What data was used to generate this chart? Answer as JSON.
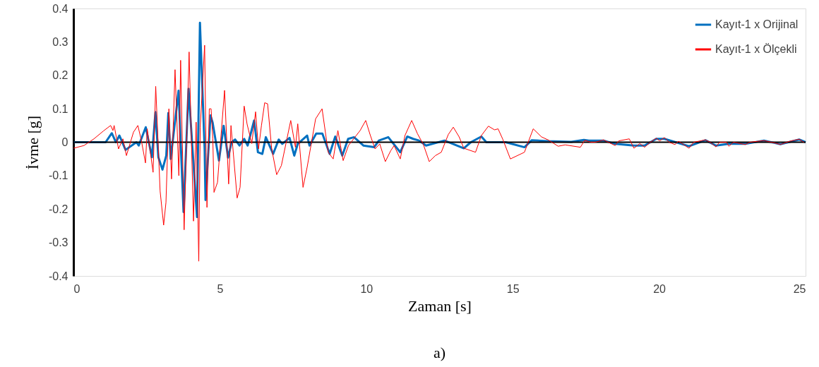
{
  "chart_data": {
    "type": "line",
    "xlabel": "Zaman [s]",
    "ylabel": "İvme [g]",
    "annotations": [
      "a)"
    ],
    "xlim": [
      0,
      25
    ],
    "xticks": [
      0,
      5,
      10,
      15,
      20,
      25
    ],
    "ylim": [
      -0.4,
      0.4
    ],
    "yticks": [
      -0.4,
      -0.3,
      -0.2,
      -0.1,
      0,
      0.1,
      0.2,
      0.3,
      0.4
    ],
    "grid": false,
    "legend": "top right",
    "marker": "none",
    "line_style": "solid",
    "ref_lines": [
      {
        "axis": "y",
        "value": 0,
        "color": "#000000"
      }
    ],
    "series": [
      {
        "name": "Kayıt-1 x Orijinal",
        "color": "#0070c0",
        "x": [
          0,
          1.1,
          1.31,
          1.45,
          1.57,
          1.78,
          2.15,
          2.23,
          2.47,
          2.68,
          2.8,
          2.9,
          3.04,
          3.17,
          3.24,
          3.32,
          3.44,
          3.59,
          3.76,
          3.93,
          4.22,
          4.32,
          4.48,
          4.51,
          4.68,
          4.75,
          4.97,
          5.13,
          5.28,
          5.4,
          5.52,
          5.67,
          5.83,
          5.95,
          6.17,
          6.3,
          6.45,
          6.57,
          6.82,
          7.01,
          7.13,
          7.38,
          7.54,
          7.66,
          7.98,
          8.06,
          8.29,
          8.5,
          8.75,
          8.94,
          9.18,
          9.38,
          9.58,
          9.9,
          10.27,
          10.43,
          10.75,
          11.16,
          11.4,
          11.6,
          11.8,
          12.04,
          12.67,
          13.33,
          13.57,
          13.93,
          14.1,
          14.76,
          15.4,
          15.65,
          16.2,
          17.0,
          17.43,
          17.6,
          18.1,
          18.5,
          19.14,
          19.5,
          19.9,
          20.18,
          21.02,
          21.58,
          21.94,
          22.38,
          22.94,
          23.58,
          24.14,
          24.78,
          25
        ],
        "values": [
          0,
          0,
          0.027,
          0,
          0.02,
          -0.023,
          0,
          -0.01,
          0.045,
          -0.045,
          0.09,
          -0.045,
          -0.082,
          -0.04,
          0.087,
          -0.05,
          0.04,
          0.154,
          -0.209,
          0.16,
          -0.224,
          0.357,
          -0.02,
          -0.173,
          0.08,
          0.06,
          -0.055,
          0.049,
          -0.046,
          0,
          0.008,
          -0.01,
          0.01,
          -0.01,
          0.065,
          -0.03,
          -0.035,
          0.015,
          -0.035,
          0.008,
          -0.005,
          0.013,
          -0.04,
          -0.005,
          0.02,
          -0.01,
          0.026,
          0.026,
          -0.035,
          0.017,
          -0.04,
          0.01,
          0.015,
          -0.01,
          -0.015,
          0.005,
          0.015,
          -0.03,
          0.017,
          0.01,
          0.005,
          -0.01,
          0.005,
          -0.018,
          0,
          0.017,
          0,
          0,
          -0.015,
          0.006,
          0.003,
          0.001,
          0.007,
          0.005,
          0.005,
          -0.005,
          -0.01,
          -0.01,
          0.01,
          0.01,
          -0.012,
          0.006,
          -0.01,
          -0.005,
          -0.005,
          0.005,
          -0.006,
          0.008,
          0
        ]
      },
      {
        "name": "Kayıt-1 x Ölçekli",
        "color": "#ff0000",
        "x": [
          0,
          0.36,
          0.7,
          1.03,
          1.27,
          1.35,
          1.39,
          1.54,
          1.69,
          1.81,
          2.05,
          2.2,
          2.32,
          2.46,
          2.52,
          2.72,
          2.81,
          2.96,
          3.08,
          3.16,
          3.26,
          3.35,
          3.47,
          3.6,
          3.66,
          3.78,
          3.95,
          4.1,
          4.19,
          4.28,
          4.33,
          4.48,
          4.53,
          4.56,
          4.64,
          4.7,
          4.76,
          4.8,
          4.92,
          5.04,
          5.16,
          5.3,
          5.38,
          5.59,
          5.69,
          5.83,
          5.93,
          6.09,
          6.22,
          6.32,
          6.42,
          6.53,
          6.63,
          6.77,
          6.94,
          7.1,
          7.42,
          7.58,
          7.66,
          7.84,
          7.98,
          8.27,
          8.49,
          8.7,
          8.87,
          9.03,
          9.21,
          9.39,
          9.79,
          9.98,
          10.14,
          10.3,
          10.46,
          10.65,
          10.83,
          10.95,
          11.16,
          11.32,
          11.55,
          11.75,
          11.95,
          12.15,
          12.36,
          12.56,
          12.8,
          12.97,
          13.17,
          13.33,
          13.73,
          13.93,
          14.17,
          14.38,
          14.5,
          14.66,
          14.92,
          15.4,
          15.7,
          15.98,
          16.23,
          16.55,
          16.79,
          17.31,
          17.46,
          17.66,
          17.82,
          18.1,
          18.26,
          18.5,
          18.62,
          18.98,
          19.14,
          19.34,
          19.5,
          19.7,
          19.9,
          20.02,
          20.18,
          20.34,
          20.54,
          20.66,
          21.02,
          21.18,
          21.58,
          21.74,
          21.94,
          22.06,
          22.3,
          22.38,
          22.54,
          22.94,
          23.1,
          23.58,
          23.98,
          24.14,
          24.46,
          24.78,
          24.94
        ],
        "values": [
          -0.018,
          -0.01,
          0.01,
          0.034,
          0.05,
          0.035,
          0.05,
          -0.02,
          0.01,
          -0.04,
          0.03,
          0.05,
          0.005,
          -0.062,
          0.04,
          -0.09,
          0.167,
          -0.146,
          -0.248,
          -0.18,
          0.1,
          -0.11,
          0.217,
          -0.1,
          0.245,
          -0.262,
          0.27,
          -0.236,
          0.06,
          -0.356,
          0.045,
          0.29,
          -0.03,
          -0.195,
          0.1,
          0.1,
          0.01,
          -0.15,
          -0.12,
          0.02,
          0.155,
          -0.125,
          0.05,
          -0.167,
          -0.135,
          0.108,
          0.054,
          -0.004,
          0.091,
          -0.02,
          0.05,
          0.118,
          0.115,
          -0.02,
          -0.097,
          -0.07,
          0.065,
          -0.015,
          0.055,
          -0.135,
          -0.075,
          0.07,
          0.1,
          -0.03,
          -0.05,
          0.035,
          -0.055,
          -0.01,
          0.035,
          0.065,
          0.02,
          -0.02,
          -0.005,
          -0.058,
          -0.026,
          -0.01,
          -0.05,
          0.02,
          0.065,
          0.025,
          -0.007,
          -0.058,
          -0.04,
          -0.03,
          0.023,
          0.045,
          0.016,
          -0.018,
          -0.03,
          0.02,
          0.048,
          0.037,
          0.04,
          0.009,
          -0.05,
          -0.03,
          0.04,
          0.016,
          0.006,
          -0.012,
          -0.008,
          -0.015,
          0.006,
          0,
          0,
          0.007,
          0,
          -0.01,
          0.004,
          0.01,
          -0.018,
          -0.004,
          -0.015,
          0,
          0.012,
          0.004,
          0.014,
          0,
          -0.007,
          0.003,
          -0.018,
          0,
          0.007,
          0,
          -0.014,
          0,
          0,
          -0.012,
          0,
          -0.007,
          0,
          0.005,
          -0.003,
          -0.007,
          0.003,
          0.009,
          0
        ]
      }
    ]
  }
}
